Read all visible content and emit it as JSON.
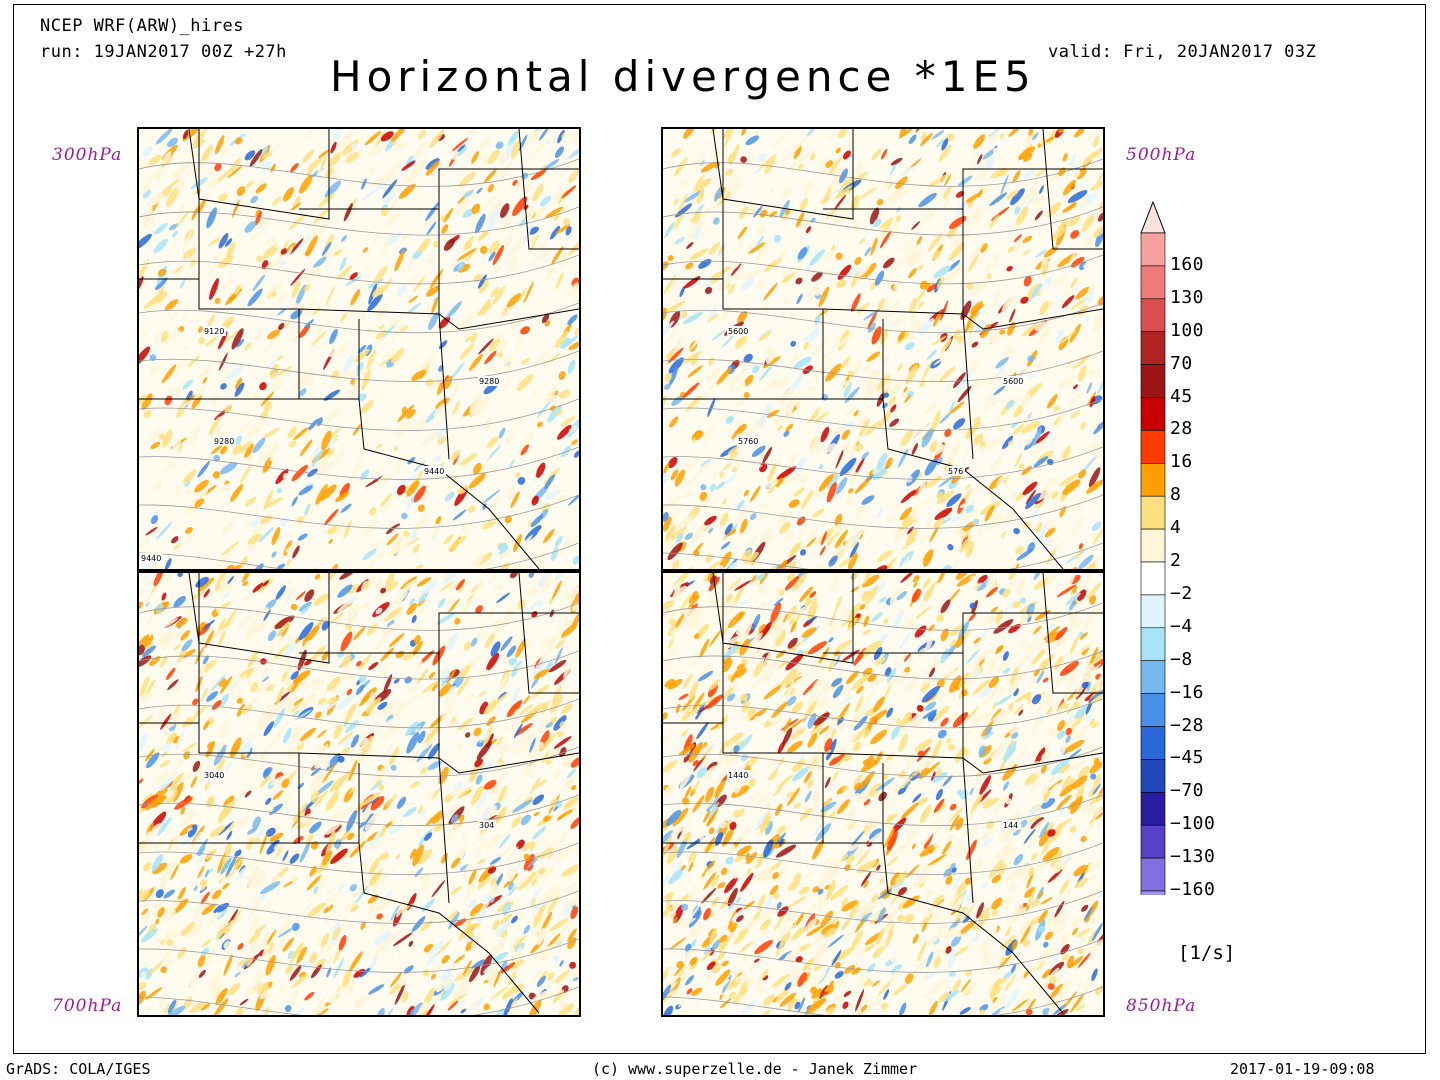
{
  "header": {
    "model": "NCEP WRF(ARW)_hires",
    "run": "run: 19JAN2017 00Z +27h",
    "valid": "valid: Fri, 20JAN2017 03Z",
    "title": "Horizontal divergence *1E5"
  },
  "panels": [
    {
      "level": "300hPa",
      "contours": [
        "9120",
        "9280",
        "9280",
        "9440",
        "9440"
      ],
      "colorHint": "#f39c2b"
    },
    {
      "level": "500hPa",
      "contours": [
        "5600",
        "5600",
        "5760",
        "576"
      ],
      "colorHint": "#f6b84b"
    },
    {
      "level": "700hPa",
      "contours": [
        "3040",
        "304"
      ],
      "colorHint": "#e8652a"
    },
    {
      "level": "850hPa",
      "contours": [
        "1440",
        "144"
      ],
      "colorHint": "#b4201a"
    }
  ],
  "colorbar": {
    "unit": "[1/s]",
    "levels": [
      "160",
      "130",
      "100",
      "70",
      "45",
      "28",
      "16",
      "8",
      "4",
      "2",
      "−2",
      "−4",
      "−8",
      "−16",
      "−28",
      "−45",
      "−70",
      "−100",
      "−130",
      "−160"
    ],
    "colors": [
      "#f6a0a0",
      "#ee7a7a",
      "#d94f4f",
      "#b02323",
      "#9c1414",
      "#c80000",
      "#ff3c00",
      "#ffa000",
      "#ffe080",
      "#fff5d8",
      "#ffffff",
      "#e0f4ff",
      "#a8e4f8",
      "#78b8f0",
      "#4890e8",
      "#2868d8",
      "#1f48b8",
      "#2a1ca0",
      "#5840c8",
      "#8070e0",
      "#a090f8"
    ],
    "topArrowColor": "#fde2e2",
    "bottomArrowColor": "#c8c0ff"
  },
  "footer": {
    "left": "GrADS: COLA/IGES",
    "center": "(c) www.superzelle.de - Janek Zimmer",
    "right": "2017-01-19-09:08"
  }
}
